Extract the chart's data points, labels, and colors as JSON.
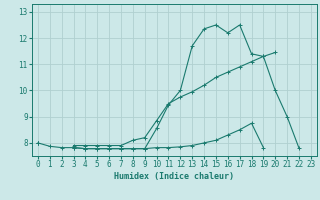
{
  "xlabel": "Humidex (Indice chaleur)",
  "bg_color": "#cce8e8",
  "grid_color": "#b0d0d0",
  "line_color": "#1a7a6e",
  "xlim": [
    -0.5,
    23.5
  ],
  "ylim": [
    7.5,
    13.3
  ],
  "yticks": [
    8,
    9,
    10,
    11,
    12,
    13
  ],
  "xticks": [
    0,
    1,
    2,
    3,
    4,
    5,
    6,
    7,
    8,
    9,
    10,
    11,
    12,
    13,
    14,
    15,
    16,
    17,
    18,
    19,
    20,
    21,
    22,
    23
  ],
  "line1_y": [
    8.0,
    7.87,
    7.82,
    7.82,
    7.78,
    7.78,
    7.78,
    7.78,
    7.78,
    7.78,
    8.55,
    9.45,
    10.0,
    11.7,
    12.35,
    12.5,
    12.2,
    12.5,
    11.4,
    11.3,
    10.0,
    9.0,
    7.8,
    null
  ],
  "line2_y": [
    8.0,
    null,
    null,
    7.9,
    7.9,
    7.9,
    7.9,
    7.9,
    8.1,
    8.2,
    8.85,
    9.5,
    9.75,
    9.95,
    10.2,
    10.5,
    10.7,
    10.9,
    11.1,
    11.3,
    11.45,
    null,
    null,
    null
  ],
  "line3_y": [
    8.0,
    null,
    null,
    7.82,
    7.78,
    7.78,
    7.78,
    7.78,
    7.78,
    7.78,
    7.82,
    7.82,
    7.85,
    7.9,
    8.0,
    8.1,
    8.3,
    8.5,
    8.75,
    7.82,
    null,
    null,
    null,
    null
  ]
}
